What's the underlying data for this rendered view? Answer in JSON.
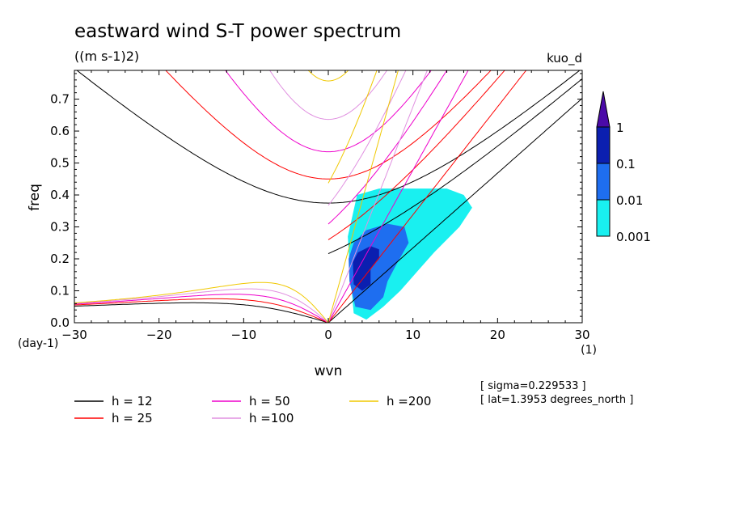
{
  "chart_data": {
    "type": "line",
    "title": "eastward wind S-T power spectrum",
    "subtitle": "((m s-1)2)",
    "corner_label": "kuo_d",
    "xlabel": "wvn",
    "ylabel": "freq",
    "xunit": "(1)",
    "yunit": "(day-1)",
    "xlim": [
      -30,
      30
    ],
    "ylim": [
      0,
      0.79
    ],
    "xticks": [
      "−30",
      "−20",
      "−10",
      "0",
      "10",
      "20",
      "30"
    ],
    "yticks": [
      "0.0",
      "0.1",
      "0.2",
      "0.3",
      "0.4",
      "0.5",
      "0.6",
      "0.7"
    ],
    "grid": false,
    "annotations": [
      "[ sigma=0.229533 ]",
      "[ lat=1.3953 degrees_north ]"
    ],
    "colorbar": {
      "levels": [
        "1",
        "0.1",
        "0.01",
        "0.001"
      ],
      "colors": [
        "#4b0aa8",
        "#0b1fb0",
        "#1e6ef0",
        "#19f0f0"
      ]
    },
    "series": [
      {
        "name": "h = 12",
        "h": 12,
        "color": "#000000"
      },
      {
        "name": "h = 25",
        "h": 25,
        "color": "#ff0000"
      },
      {
        "name": "h = 50",
        "h": 50,
        "color": "#ee00cc"
      },
      {
        "name": "h =100",
        "h": 100,
        "color": "#e090e0"
      },
      {
        "name": "h =200",
        "h": 200,
        "color": "#f0c800"
      }
    ],
    "shading": [
      {
        "level": 0.001,
        "polygon": [
          [
            3.0,
            0.03
          ],
          [
            2.5,
            0.18
          ],
          [
            2.3,
            0.27
          ],
          [
            3.4,
            0.4
          ],
          [
            6.0,
            0.42
          ],
          [
            10.0,
            0.42
          ],
          [
            14.0,
            0.42
          ],
          [
            16.0,
            0.4
          ],
          [
            17.0,
            0.36
          ],
          [
            15.5,
            0.3
          ],
          [
            12.5,
            0.22
          ],
          [
            10.5,
            0.16
          ],
          [
            8.5,
            0.1
          ],
          [
            6.5,
            0.05
          ],
          [
            4.5,
            0.01
          ]
        ]
      },
      {
        "level": 0.01,
        "polygon": [
          [
            3.2,
            0.05
          ],
          [
            2.5,
            0.13
          ],
          [
            2.4,
            0.2
          ],
          [
            3.0,
            0.25
          ],
          [
            4.5,
            0.29
          ],
          [
            7.0,
            0.31
          ],
          [
            9.0,
            0.3
          ],
          [
            9.5,
            0.25
          ],
          [
            8.0,
            0.18
          ],
          [
            7.0,
            0.13
          ],
          [
            6.5,
            0.08
          ],
          [
            5.0,
            0.04
          ]
        ]
      },
      {
        "level": 0.1,
        "polygon": [
          [
            3.0,
            0.12
          ],
          [
            2.9,
            0.19
          ],
          [
            3.5,
            0.22
          ],
          [
            5.0,
            0.24
          ],
          [
            6.0,
            0.23
          ],
          [
            6.0,
            0.2
          ],
          [
            5.0,
            0.17
          ],
          [
            5.0,
            0.12
          ],
          [
            4.0,
            0.1
          ]
        ]
      }
    ]
  }
}
